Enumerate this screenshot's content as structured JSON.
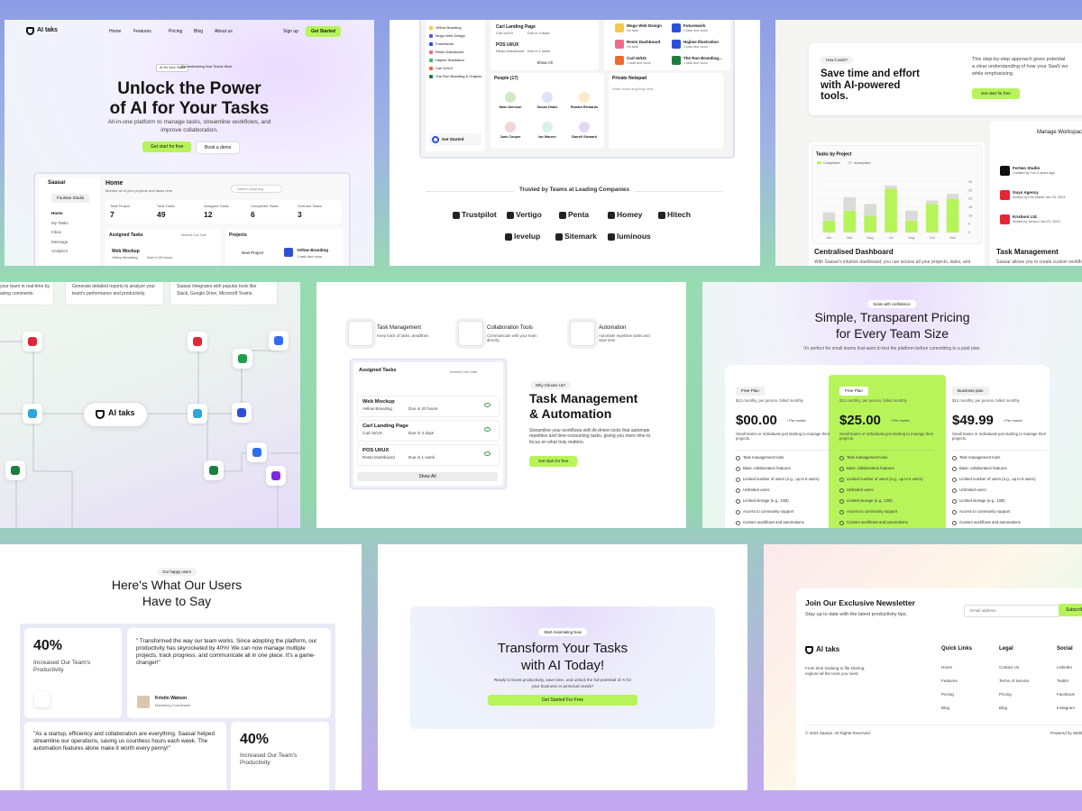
{
  "hero": {
    "logo": "AI taks",
    "nav": [
      "Home",
      "Features",
      "Pricing",
      "Blog",
      "About us"
    ],
    "sign_up": "Sign up",
    "get_started": "Get Started",
    "badge": "AI for Your Tasks",
    "badge_note": "Revolutionizing How Teams Work",
    "title_1": "Unlock the Power",
    "title_2": "of AI for Your Tasks",
    "subtitle_1": "All-in-one platform to manage tasks, streamline workflows, and",
    "subtitle_2": "improve collaboration.",
    "cta_primary": "Get start for free",
    "cta_secondary": "Book a demo",
    "app": {
      "brand": "Saasar",
      "workspace": "Fourtwo Studio",
      "menu": [
        "Home",
        "My Tasks",
        "Inbox",
        "Message",
        "Analytics"
      ],
      "heading": "Home",
      "subheading": "Monitor all of your projects and tasks here",
      "search": "Search anything",
      "stats": [
        {
          "label": "Total Project",
          "value": 7
        },
        {
          "label": "Total Tasks",
          "value": 49
        },
        {
          "label": "Assigned Tasks",
          "value": 12
        },
        {
          "label": "Completed Tasks",
          "value": 6
        },
        {
          "label": "Overdue Tasks",
          "value": 3
        }
      ],
      "assigned": "Assigned Tasks",
      "sort": "Nearest Due Date",
      "task": "Web Mockup",
      "task_project": "Yellow Branding",
      "task_due": "Due in 20 hours",
      "projects": "Projects",
      "new_project": "New Project",
      "project": "Yellow Branding",
      "project_due": "1 task due soon"
    }
  },
  "dashboard": {
    "projects_list": [
      "Yellow Branding",
      "Mogo Web Design",
      "Futurework",
      "Resto Dashboard",
      "Hajime Illustration",
      "Carl UI/UX",
      "The Run Branding & Graphic"
    ],
    "tasks": [
      {
        "name": "Carl Landing Page",
        "project": "Carl UI/UX",
        "due": "Due in 3 days"
      },
      {
        "name": "POS UI/UX",
        "project": "Resto Dashboard",
        "due": "Due in 1 week"
      }
    ],
    "show_all": "Show All",
    "project_grid": [
      {
        "name": "Mogo Web Design",
        "note": "No task"
      },
      {
        "name": "Futurework",
        "note": "1 task due soon"
      },
      {
        "name": "Resto Dashboard",
        "note": "No task"
      },
      {
        "name": "Hajime Illustration",
        "note": "1 task due soon"
      },
      {
        "name": "Carl UI/UX",
        "note": "1 task due soon"
      },
      {
        "name": "The Run Branding...",
        "note": "1 task due soon"
      }
    ],
    "people_title": "People (17)",
    "people": [
      "Marc Atenson",
      "Susan Drake",
      "Ronald Richards",
      "Jane Cooper",
      "Ian Warren",
      "Darrell Steward"
    ],
    "notepad": "Private Notepad",
    "notepad_placeholder": "Write down anything here...",
    "get_started": "Get Started",
    "trusted": "Trusted by Teams at Leading Companies",
    "logos": [
      "Trustpilot",
      "Vertigo",
      "Penta",
      "Homey",
      "Hitech",
      "levelup",
      "Sitemark",
      "luminous"
    ]
  },
  "how_it_works": {
    "pill": "How it work?",
    "title": [
      "Save time and effort",
      "with AI-powered",
      "tools."
    ],
    "desc": [
      "This step-by-step approach gives potential",
      "a clear understanding of how your SaaS wo",
      "while emphasizing."
    ],
    "cta": "Get start for free",
    "dashboard_title": "Centralised Dashboard",
    "dashboard_desc": "With Saasar's intuitive dashboard, you can access all your projects, tasks, and",
    "workspace_title": "Manage Workspace",
    "workspaces": [
      {
        "name": "Fortwo Studio",
        "note": "Created by You 3 years ago"
      },
      {
        "name": "Guys Agency",
        "note": "Invited by Kris Martin Jan 23, 2023"
      },
      {
        "name": "Krisboni Ltd.",
        "note": "Invited by Jenson Jan 23, 2023"
      }
    ],
    "task_title": "Task Management",
    "task_desc": "Saasar allows you to create custom workflows"
  },
  "tasks_chart": {
    "type": "bar",
    "title": "Tasks by Project",
    "categories": [
      "Jan",
      "Mar",
      "May",
      "Jul",
      "Aug",
      "Oct",
      "Nov"
    ],
    "series": [
      {
        "name": "Completed",
        "color": "#b6f45a",
        "values": [
          7,
          13,
          10,
          26,
          7,
          17,
          20
        ]
      },
      {
        "name": "Incomplete",
        "color": "#d9dcd6",
        "values": [
          5,
          8,
          7,
          2,
          6,
          2,
          3
        ]
      }
    ],
    "ylim": [
      0,
      30
    ],
    "yticks": [
      0,
      5,
      10,
      15,
      20,
      25,
      30
    ],
    "stacked": true
  },
  "integrations": {
    "cards": [
      [
        "your team in real-time by",
        "aving comments."
      ],
      [
        "Generate detailed reports to analyze your",
        "team's performance and productivity."
      ],
      [
        "Saasar integrates with popular tools like",
        "Slack, Google Drive, Microsoft Teams."
      ]
    ],
    "hub": "AI taks"
  },
  "features": {
    "items": [
      {
        "title": "Task Management",
        "desc": "Keep track of tasks, deadlines"
      },
      {
        "title": "Collaboration Tools",
        "desc": "Communicate with your team directly"
      },
      {
        "title": "Automation",
        "desc": "Automate repetitive tasks and save time"
      }
    ],
    "card_title": "Assigned Tasks",
    "card_sort": "Nearest Due Date",
    "tasks": [
      {
        "name": "Web Mockup",
        "project": "Yellow Branding",
        "due": "Due in 20 hours"
      },
      {
        "name": "Carl Landing Page",
        "project": "Carl UI/UX",
        "due": "Due in 3 days"
      },
      {
        "name": "POS UI/UX",
        "project": "Resto Dashboard",
        "due": "Due in 1 week"
      }
    ],
    "show_all": "Show All",
    "pill": "Why Choose Us?",
    "title": [
      "Task Management",
      "& Automation"
    ],
    "desc": "Streamline your workflows with AI-driven tools that automate repetitive and time-consuming tasks, giving you more time to focus on what truly matters.",
    "cta": "Get start for free"
  },
  "pricing": {
    "pill": "Scale with confidence",
    "title": [
      "Simple, Transparent Pricing",
      "for Every Team Size"
    ],
    "subtitle": "It's perfect for small teams that want to test the platform before committing to a paid plan.",
    "plans": [
      {
        "name": "Free Plan",
        "price": "$00.00"
      },
      {
        "name": "Free Plan",
        "price": "$25.00"
      },
      {
        "name": "Business plan",
        "price": "$49.99"
      }
    ],
    "billing": "$12 monthly, per person, billed monthly",
    "per": "/ Per month",
    "desc": "Small teams or individuals just starting to manage their projects.",
    "features": [
      "Task management tools",
      "Basic collaboration features",
      "Limited number of users (e.g., up to 5 users)",
      "Unlimited users",
      "Limited storage (e.g., 10B)",
      "Access to community support",
      "Custom workflows and automations"
    ]
  },
  "testimonials": {
    "pill": "Our happy users",
    "title": [
      "Here's What Our Users",
      "Have to Say"
    ],
    "stat": "40%",
    "stat_desc": "Increased Our Team's Productivity",
    "quote_1": "\" Transformed the way our team works. Since adopting the platform, our productivity has skyrocketed by 40%! We can now manage multiple projects, track progress, and communicate all in one place. It's a game-changer!\"",
    "author": "Kristin Watson",
    "role": "Marketing Coordinator",
    "quote_2": "\"As a startup, efficiency and collaboration are everything. Saasar helped streamline our operations, saving us countless hours each week. The automation features alone make it worth every penny!\""
  },
  "cta": {
    "pill": "Start Automating Now",
    "title": [
      "Transform Your Tasks",
      "with AI Today!"
    ],
    "subtitle": [
      "Ready to boost productivity, save time, and unlock the full potential of AI for",
      "your business or personal needs?"
    ],
    "button": "Get Started For Free"
  },
  "footer": {
    "newsletter_title": "Join Our Exclusive Newsletter",
    "newsletter_sub": "Stay up to date with the latest productivity tips.",
    "email": "Email address",
    "subscribe": "Subscribe",
    "logo": "AI taks",
    "desc": "From time tracking to file sharing, explore all the tools you need.",
    "columns": [
      {
        "title": "Quick Links",
        "links": [
          "Home",
          "Features",
          "Pricing",
          "Blog"
        ]
      },
      {
        "title": "Legal",
        "links": [
          "Contact Us",
          "Terms of Service",
          "Pricing",
          "Blog"
        ]
      },
      {
        "title": "Social",
        "links": [
          "LinkedIn",
          "Twitter",
          "Facebook",
          "Instagram"
        ]
      }
    ],
    "copyright": "© 2024 Saasar. All Rights Reserved.",
    "powered": "Powered by Webflow"
  }
}
